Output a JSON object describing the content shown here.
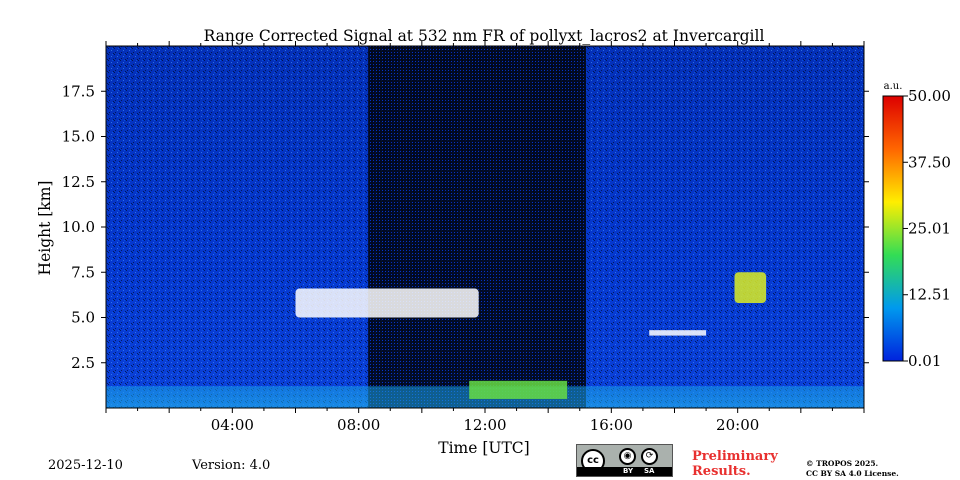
{
  "chart_data": {
    "type": "heatmap",
    "title": "Range Corrected Signal at 532 nm FR of pollyxt_lacros2 at Invercargill",
    "xlabel": "Time [UTC]",
    "ylabel": "Height [km]",
    "xlim": [
      0,
      24
    ],
    "ylim": [
      0,
      20
    ],
    "x_ticks": [
      {
        "value": 4,
        "label": "04:00"
      },
      {
        "value": 8,
        "label": "08:00"
      },
      {
        "value": 12,
        "label": "12:00"
      },
      {
        "value": 16,
        "label": "16:00"
      },
      {
        "value": 20,
        "label": "20:00"
      }
    ],
    "y_ticks": [
      {
        "value": 2.5,
        "label": "2.5"
      },
      {
        "value": 5.0,
        "label": "5.0"
      },
      {
        "value": 7.5,
        "label": "7.5"
      },
      {
        "value": 10.0,
        "label": "10.0"
      },
      {
        "value": 12.5,
        "label": "12.5"
      },
      {
        "value": 15.0,
        "label": "15.0"
      },
      {
        "value": 17.5,
        "label": "17.5"
      }
    ],
    "colorbar": {
      "unit": "a.u.",
      "range": [
        0.01,
        50.0
      ],
      "ticks": [
        {
          "value": 0.01,
          "label": "0.01"
        },
        {
          "value": 12.51,
          "label": "12.51"
        },
        {
          "value": 25.01,
          "label": "25.01"
        },
        {
          "value": 37.5,
          "label": "37.50"
        },
        {
          "value": 50.0,
          "label": "50.00"
        }
      ],
      "colors": [
        "#0022dd",
        "#0099ee",
        "#33dd55",
        "#ffee00",
        "#ff6600",
        "#dd0000"
      ]
    },
    "features": [
      {
        "name": "boundary layer",
        "x": [
          0,
          24
        ],
        "y": [
          0,
          1.2
        ]
      },
      {
        "name": "cloud layer",
        "x": [
          6.0,
          11.8
        ],
        "y": [
          5.0,
          6.6
        ]
      },
      {
        "name": "low cloud",
        "x": [
          11.5,
          14.6
        ],
        "y": [
          0.5,
          1.5
        ]
      },
      {
        "name": "thin layer",
        "x": [
          17.2,
          19.0
        ],
        "y": [
          4.0,
          4.3
        ]
      },
      {
        "name": "cloud patch",
        "x": [
          19.9,
          20.9
        ],
        "y": [
          5.8,
          7.5
        ]
      },
      {
        "name": "no signal region",
        "x": [
          8.3,
          15.2
        ],
        "y": [
          0,
          20
        ]
      }
    ]
  },
  "footer": {
    "date": "2025-12-10",
    "version": "Version: 4.0",
    "preliminary_line1": "Preliminary",
    "preliminary_line2": "Results.",
    "copyright_line1": "© TROPOS 2025.",
    "copyright_line2": "CC BY SA 4.0 License.",
    "license_by": "BY",
    "license_sa": "SA",
    "license_cc": "cc"
  }
}
